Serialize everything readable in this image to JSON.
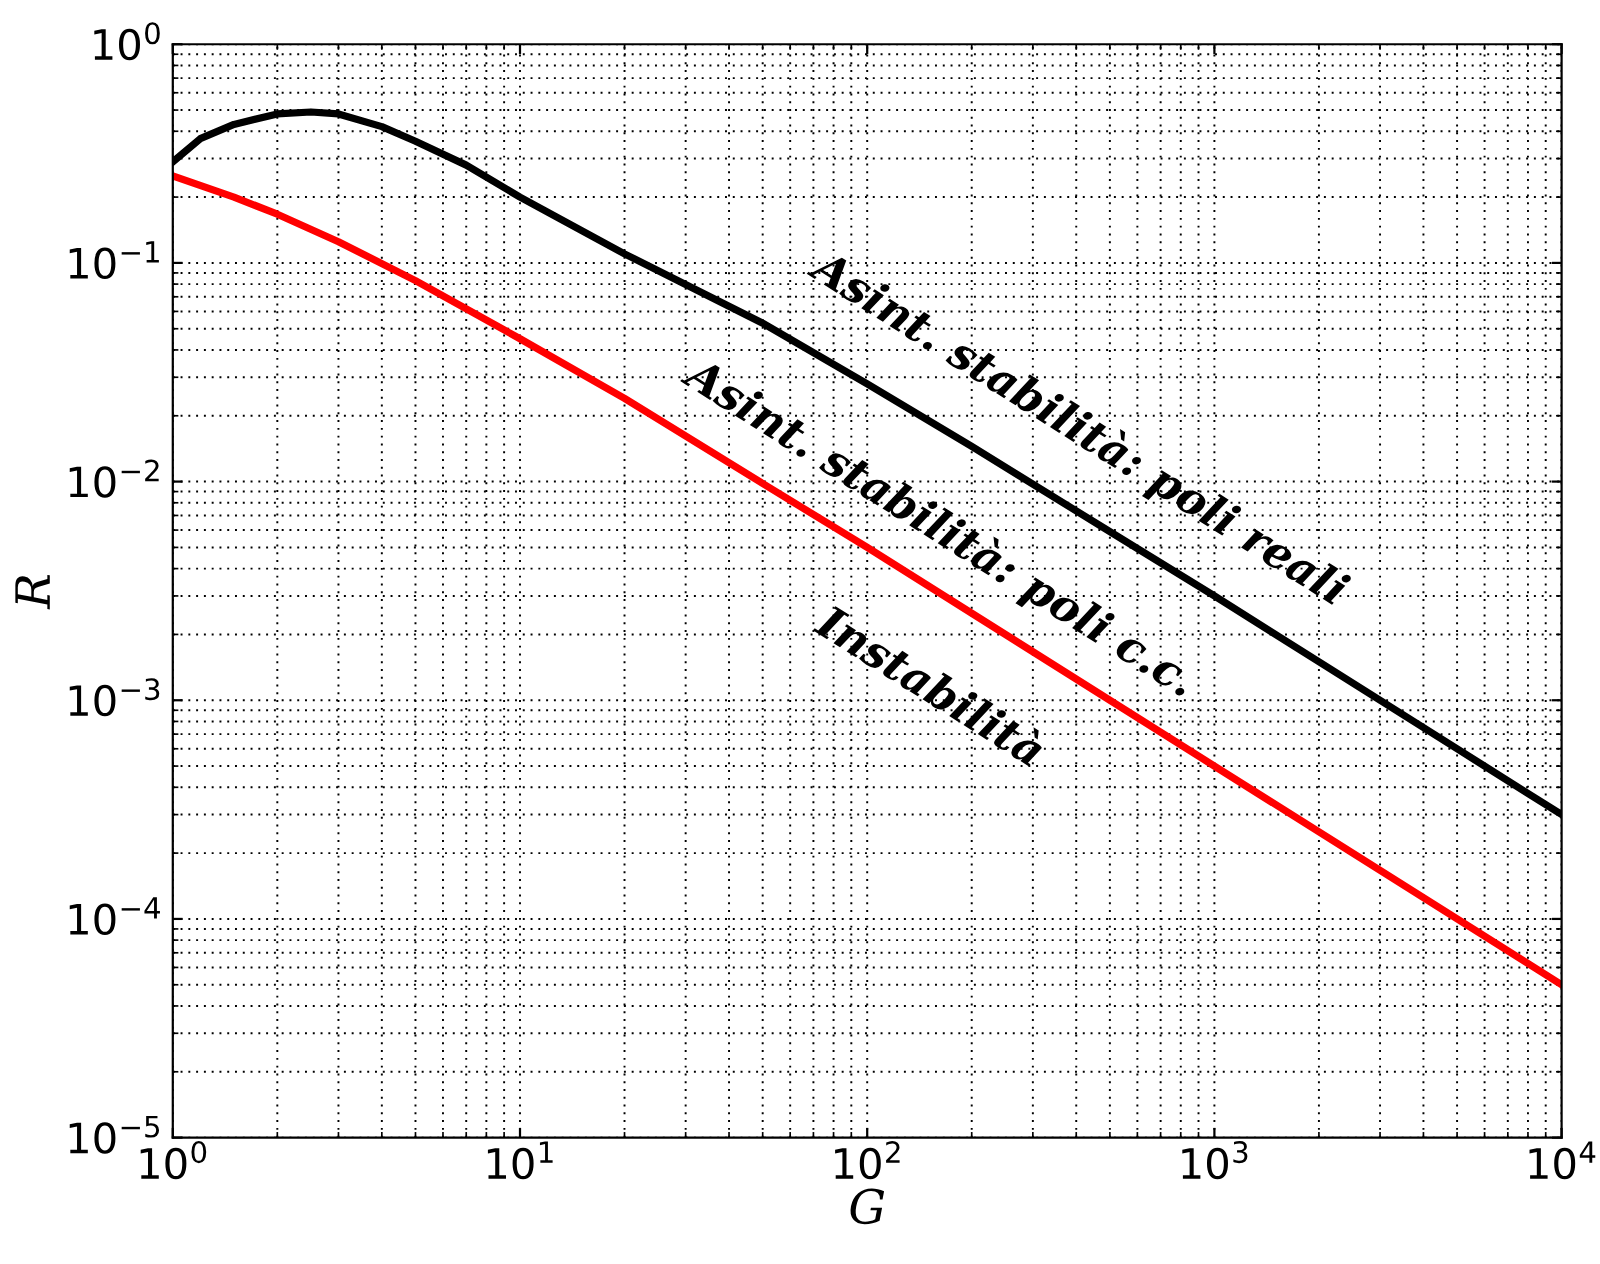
{
  "chart_data": {
    "type": "line",
    "xlabel": "G",
    "ylabel": "R",
    "log": "xy",
    "grid": true,
    "marker": "none",
    "line_style": "solid",
    "xlim": [
      1,
      10000
    ],
    "ylim": [
      1e-05,
      1
    ],
    "xticks": [
      {
        "value": 1,
        "label": "10$^{0}$"
      },
      {
        "value": 10,
        "label": "10$^{1}$"
      },
      {
        "value": 100,
        "label": "10$^{2}$"
      },
      {
        "value": 1000,
        "label": "10$^{3}$"
      },
      {
        "value": 10000,
        "label": "10$^{4}$"
      }
    ],
    "yticks": [
      {
        "value": 1e-05,
        "label": "10$^{−5}$"
      },
      {
        "value": 0.0001,
        "label": "10$^{−4}$"
      },
      {
        "value": 0.001,
        "label": "10$^{−3}$"
      },
      {
        "value": 0.01,
        "label": "10$^{−2}$"
      },
      {
        "value": 0.1,
        "label": "10$^{−1}$"
      },
      {
        "value": 1,
        "label": "10$^{0}$"
      }
    ],
    "series": [
      {
        "color": "#000000",
        "x": [
          1,
          1.2,
          1.5,
          2,
          2.5,
          3,
          4,
          5,
          7,
          10,
          20,
          50,
          100,
          200,
          500,
          1000,
          2000,
          5000,
          10000
        ],
        "values": [
          0.29,
          0.37,
          0.43,
          0.48,
          0.49,
          0.48,
          0.42,
          0.36,
          0.28,
          0.2,
          0.11,
          0.053,
          0.028,
          0.0145,
          0.0059,
          0.003,
          0.0015,
          0.0006,
          0.0003
        ]
      },
      {
        "color": "#ff0000",
        "x": [
          1,
          1.5,
          2,
          3,
          5,
          10,
          20,
          50,
          100,
          1000,
          10000
        ],
        "values": [
          0.25,
          0.2,
          0.167,
          0.125,
          0.083,
          0.045,
          0.024,
          0.0098,
          0.005,
          0.0005,
          5e-05
        ]
      }
    ],
    "annotations": [
      "Asint. stabilità: poli reali",
      "Asint. stabilità: poli c.c.",
      "Instabilità"
    ]
  }
}
